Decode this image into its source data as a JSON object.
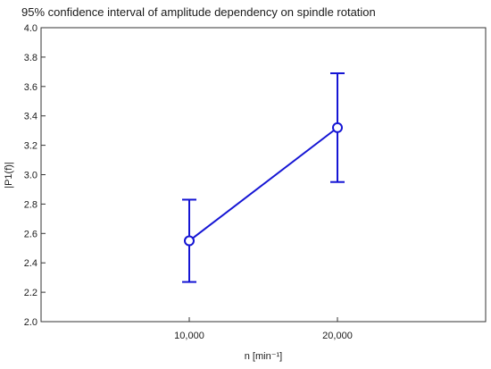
{
  "chart_data": {
    "type": "line",
    "title": "95% confidence interval of amplitude dependency on spindle rotation",
    "xlabel": "n [min⁻¹]",
    "ylabel": "|P1(f)|",
    "categories": [
      "10,000",
      "20,000"
    ],
    "series": [
      {
        "values": [
          2.55,
          3.32
        ],
        "lower": [
          2.27,
          2.95
        ],
        "upper": [
          2.83,
          3.69
        ]
      }
    ],
    "ylim": [
      2.0,
      4.0
    ],
    "yticks": [
      2.0,
      2.2,
      2.4,
      2.6,
      2.8,
      3.0,
      3.2,
      3.4,
      3.6,
      3.8,
      4.0
    ],
    "grid": false,
    "legend": "none",
    "series_color": "#1515d4",
    "axis_color": "#333333"
  }
}
